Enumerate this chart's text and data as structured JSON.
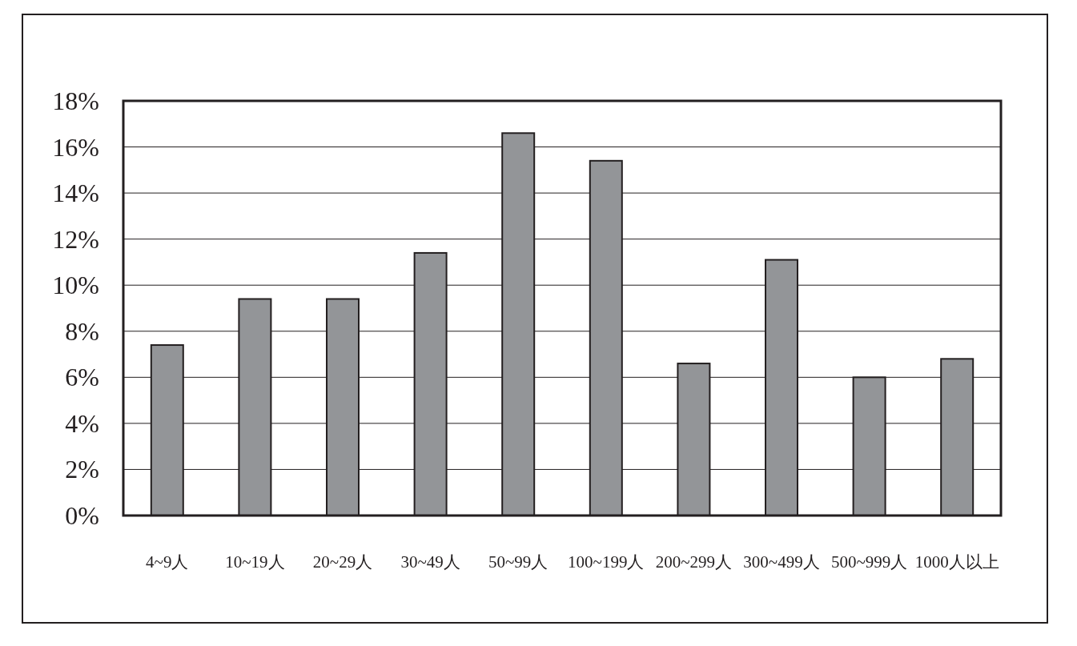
{
  "chart_data": {
    "type": "bar",
    "categories": [
      "4~9人",
      "10~19人",
      "20~29人",
      "30~49人",
      "50~99人",
      "100~199人",
      "200~299人",
      "300~499人",
      "500~999人",
      "1000人以上"
    ],
    "values": [
      7.4,
      9.4,
      9.4,
      11.4,
      16.6,
      15.4,
      6.6,
      11.1,
      6.0,
      6.8
    ],
    "color": "#939598",
    "ylim": [
      0,
      18
    ],
    "yticks": [
      {
        "value": 0,
        "label": "0%"
      },
      {
        "value": 2,
        "label": "2%"
      },
      {
        "value": 4,
        "label": "4%"
      },
      {
        "value": 6,
        "label": "6%"
      },
      {
        "value": 8,
        "label": "8%"
      },
      {
        "value": 10,
        "label": "10%"
      },
      {
        "value": 12,
        "label": "12%"
      },
      {
        "value": 14,
        "label": "14%"
      },
      {
        "value": 16,
        "label": "16%"
      },
      {
        "value": 18,
        "label": "18%"
      }
    ],
    "grid": "y"
  }
}
